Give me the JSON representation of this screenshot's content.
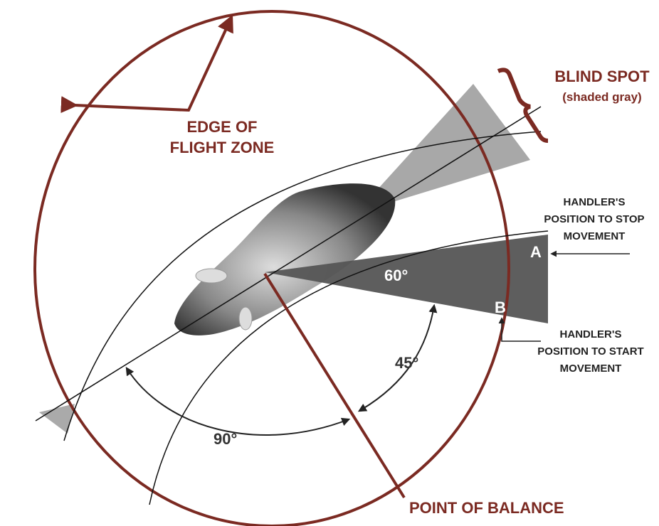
{
  "labels": {
    "flight_zone": [
      "EDGE OF",
      "FLIGHT ZONE"
    ],
    "blind_spot": {
      "title": "BLIND SPOT",
      "note": "(shaded gray)"
    },
    "stop": [
      "HANDLER'S",
      "POSITION TO STOP",
      "MOVEMENT"
    ],
    "start": [
      "HANDLER'S",
      "POSITION TO START",
      "MOVEMENT"
    ],
    "point_a": "A",
    "point_b": "B",
    "angle_60": "60°",
    "angle_45": "45°",
    "angle_90": "90°",
    "point_of_balance": "POINT OF BALANCE"
  }
}
